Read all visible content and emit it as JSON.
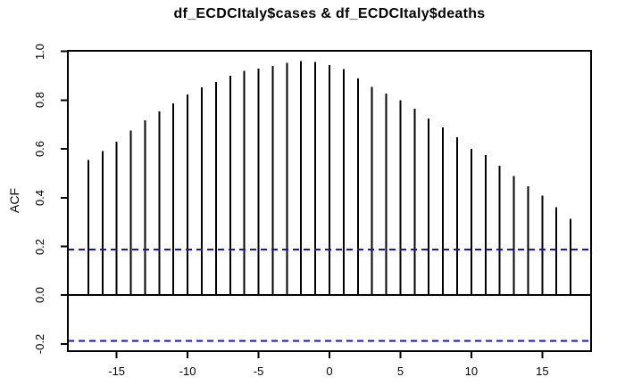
{
  "figure": {
    "background": "#ffffff"
  },
  "chart_data": {
    "type": "bar",
    "subtype": "ccf-spikes",
    "title": "df_ECDCItaly$cases & df_ECDCItaly$deaths",
    "xlabel": "",
    "ylabel": "ACF",
    "x": [
      -17,
      -16,
      -15,
      -14,
      -13,
      -12,
      -11,
      -10,
      -9,
      -8,
      -7,
      -6,
      -5,
      -4,
      -3,
      -2,
      -1,
      0,
      1,
      2,
      3,
      4,
      5,
      6,
      7,
      8,
      9,
      10,
      11,
      12,
      13,
      14,
      15,
      16,
      17
    ],
    "values": [
      0.555,
      0.592,
      0.629,
      0.675,
      0.718,
      0.754,
      0.787,
      0.824,
      0.852,
      0.874,
      0.9,
      0.921,
      0.93,
      0.94,
      0.953,
      0.96,
      0.957,
      0.944,
      0.927,
      0.889,
      0.854,
      0.827,
      0.799,
      0.764,
      0.724,
      0.689,
      0.647,
      0.601,
      0.574,
      0.531,
      0.489,
      0.447,
      0.408,
      0.361,
      0.314
    ],
    "xlim": [
      -18.44,
      18.44
    ],
    "ylim": [
      -0.2295,
      1.0025
    ],
    "xticks": [
      -15,
      -10,
      -5,
      0,
      5,
      10,
      15
    ],
    "xtick_labels": [
      "-15",
      "-10",
      "-5",
      "0",
      "5",
      "10",
      "15"
    ],
    "yticks": [
      -0.2,
      0.0,
      0.2,
      0.4,
      0.6,
      0.8,
      1.0
    ],
    "ytick_labels": [
      "-0.2",
      "0.0",
      "0.2",
      "0.4",
      "0.6",
      "0.8",
      "1.0"
    ],
    "confidence_bounds": [
      -0.188,
      0.188
    ],
    "grid": false,
    "legend": null,
    "colors": {
      "bar": "#000000",
      "axis": "#000000",
      "confidence_line": "#1414cc",
      "background": "#ffffff"
    }
  }
}
